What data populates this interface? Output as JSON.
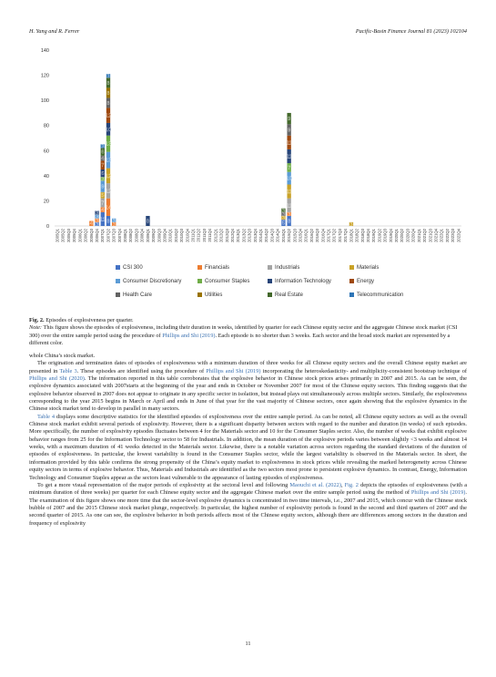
{
  "header": {
    "authors": "H. Yang and R. Ferrer",
    "journal": "Pacific-Basin Finance Journal 81 (2023) 102104"
  },
  "chart_data": {
    "type": "bar",
    "title": "",
    "xlabel": "",
    "ylabel": "",
    "ylim": [
      0,
      140
    ],
    "yticks": [
      0,
      20,
      40,
      60,
      80,
      100,
      120,
      140
    ],
    "grid": false,
    "legend_position": "bottom",
    "categories": [
      "2005Q1",
      "2005Q2",
      "2005Q3",
      "2005Q4",
      "2006Q1",
      "2006Q2",
      "2006Q3",
      "2006Q4",
      "2007Q1",
      "2007Q2",
      "2007Q3",
      "2007Q4",
      "2008Q1",
      "2008Q2",
      "2008Q3",
      "2008Q4",
      "2009Q1",
      "2009Q2",
      "2009Q3",
      "2009Q4",
      "2010Q1",
      "2010Q2",
      "2010Q3",
      "2010Q4",
      "2011Q1",
      "2011Q2",
      "2011Q3",
      "2011Q4",
      "2012Q1",
      "2012Q2",
      "2012Q3",
      "2012Q4",
      "2013Q1",
      "2013Q2",
      "2013Q3",
      "2013Q4",
      "2014Q1",
      "2014Q2",
      "2014Q3",
      "2014Q4",
      "2015Q1",
      "2015Q2",
      "2015Q3",
      "2015Q4",
      "2016Q1",
      "2016Q2",
      "2016Q3",
      "2016Q4",
      "2017Q1",
      "2017Q2",
      "2017Q3",
      "2017Q4",
      "2018Q1",
      "2018Q2",
      "2018Q3",
      "2018Q4",
      "2019Q1",
      "2019Q2",
      "2019Q3",
      "2019Q4",
      "2020Q1",
      "2020Q2",
      "2020Q3",
      "2020Q4",
      "2021Q1",
      "2021Q2",
      "2021Q3",
      "2021Q4",
      "2022Q1",
      "2022Q2",
      "2022Q3",
      "2022Q4"
    ],
    "series": [
      {
        "name": "CSI 300",
        "color": "#4472c4",
        "values": [
          0,
          0,
          0,
          0,
          0,
          0,
          0,
          3,
          11,
          8,
          0,
          0,
          0,
          0,
          0,
          0,
          0,
          0,
          0,
          0,
          0,
          0,
          0,
          0,
          0,
          0,
          0,
          0,
          0,
          0,
          0,
          0,
          0,
          0,
          0,
          0,
          0,
          0,
          0,
          0,
          5,
          8,
          0,
          0,
          0,
          0,
          0,
          0,
          0,
          0,
          0,
          0,
          0,
          0,
          0,
          0,
          0,
          0,
          0,
          0,
          0,
          0,
          0,
          0,
          0,
          0,
          0,
          0,
          0,
          0,
          0,
          0
        ]
      },
      {
        "name": "Financials",
        "color": "#ed7d31",
        "values": [
          0,
          0,
          0,
          0,
          0,
          0,
          4,
          3,
          4,
          14,
          3,
          0,
          0,
          0,
          0,
          0,
          0,
          0,
          0,
          0,
          0,
          0,
          0,
          0,
          0,
          0,
          0,
          0,
          0,
          0,
          0,
          0,
          0,
          0,
          0,
          0,
          0,
          0,
          0,
          0,
          0,
          3,
          0,
          0,
          0,
          0,
          0,
          0,
          0,
          0,
          0,
          0,
          0,
          0,
          0,
          0,
          0,
          0,
          0,
          0,
          0,
          0,
          0,
          0,
          0,
          0,
          0,
          0,
          0,
          0,
          0,
          0
        ]
      },
      {
        "name": "Industrials",
        "color": "#a5a5a5",
        "values": [
          0,
          0,
          0,
          0,
          0,
          0,
          0,
          0,
          7,
          12,
          0,
          0,
          0,
          0,
          0,
          0,
          0,
          0,
          0,
          0,
          0,
          0,
          0,
          0,
          0,
          0,
          0,
          0,
          0,
          0,
          0,
          0,
          0,
          0,
          0,
          0,
          0,
          0,
          0,
          0,
          0,
          11,
          0,
          0,
          0,
          0,
          0,
          0,
          0,
          0,
          0,
          0,
          0,
          0,
          0,
          0,
          0,
          0,
          0,
          0,
          0,
          0,
          0,
          0,
          0,
          0,
          0,
          0,
          0,
          0,
          0,
          0
        ]
      },
      {
        "name": "Materials",
        "color": "#c9a227",
        "values": [
          0,
          0,
          0,
          0,
          0,
          0,
          0,
          0,
          5,
          12,
          0,
          0,
          0,
          0,
          0,
          0,
          0,
          0,
          0,
          0,
          0,
          0,
          0,
          0,
          0,
          0,
          0,
          0,
          0,
          0,
          0,
          0,
          0,
          0,
          0,
          0,
          0,
          0,
          0,
          0,
          3,
          11,
          0,
          0,
          0,
          0,
          0,
          0,
          0,
          0,
          0,
          0,
          3,
          0,
          0,
          0,
          0,
          0,
          0,
          0,
          0,
          0,
          0,
          0,
          0,
          0,
          0,
          0,
          0,
          0,
          0,
          0
        ]
      },
      {
        "name": "Consumer Discretionary",
        "color": "#5b9bd5",
        "values": [
          0,
          0,
          0,
          0,
          0,
          0,
          0,
          3,
          9,
          13,
          3,
          0,
          0,
          0,
          0,
          0,
          0,
          0,
          0,
          0,
          0,
          0,
          0,
          0,
          0,
          0,
          0,
          0,
          0,
          0,
          0,
          0,
          0,
          0,
          0,
          0,
          0,
          0,
          0,
          0,
          0,
          10,
          0,
          0,
          0,
          0,
          0,
          0,
          0,
          0,
          0,
          0,
          0,
          0,
          0,
          0,
          0,
          0,
          0,
          0,
          0,
          0,
          0,
          0,
          0,
          0,
          0,
          0,
          0,
          0,
          0,
          0
        ]
      },
      {
        "name": "Consumer Staples",
        "color": "#70ad47",
        "values": [
          0,
          0,
          0,
          0,
          0,
          0,
          0,
          0,
          3,
          13,
          0,
          0,
          0,
          0,
          0,
          0,
          0,
          0,
          0,
          0,
          0,
          0,
          0,
          0,
          0,
          0,
          0,
          0,
          0,
          0,
          0,
          0,
          0,
          0,
          0,
          0,
          0,
          0,
          0,
          0,
          0,
          7,
          0,
          0,
          0,
          0,
          0,
          0,
          0,
          0,
          0,
          0,
          0,
          0,
          0,
          0,
          0,
          0,
          0,
          0,
          0,
          0,
          0,
          0,
          0,
          0,
          0,
          0,
          0,
          0,
          0,
          0
        ]
      },
      {
        "name": "Information Technology",
        "color": "#264478",
        "values": [
          0,
          0,
          0,
          0,
          0,
          0,
          0,
          3,
          6,
          10,
          0,
          0,
          0,
          0,
          0,
          0,
          8,
          0,
          0,
          0,
          0,
          0,
          0,
          0,
          0,
          0,
          0,
          0,
          0,
          0,
          0,
          0,
          0,
          0,
          0,
          0,
          0,
          0,
          0,
          0,
          0,
          11,
          0,
          0,
          0,
          0,
          0,
          0,
          0,
          0,
          0,
          0,
          0,
          0,
          0,
          0,
          0,
          0,
          0,
          0,
          0,
          0,
          0,
          0,
          0,
          0,
          0,
          0,
          0,
          0,
          0,
          0
        ]
      },
      {
        "name": "Energy",
        "color": "#9e480e",
        "values": [
          0,
          0,
          0,
          0,
          0,
          0,
          0,
          0,
          7,
          12,
          0,
          0,
          0,
          0,
          0,
          0,
          0,
          0,
          0,
          0,
          0,
          0,
          0,
          0,
          0,
          0,
          0,
          0,
          0,
          0,
          0,
          0,
          0,
          0,
          0,
          0,
          0,
          0,
          0,
          0,
          0,
          11,
          0,
          0,
          0,
          0,
          0,
          0,
          0,
          0,
          0,
          0,
          0,
          0,
          0,
          0,
          0,
          0,
          0,
          0,
          0,
          0,
          0,
          0,
          0,
          0,
          0,
          0,
          0,
          0,
          0,
          0
        ]
      },
      {
        "name": "Health Care",
        "color": "#636363",
        "values": [
          0,
          0,
          0,
          0,
          0,
          0,
          0,
          0,
          4,
          8,
          0,
          0,
          0,
          0,
          0,
          0,
          0,
          0,
          0,
          0,
          0,
          0,
          0,
          0,
          0,
          0,
          0,
          0,
          0,
          0,
          0,
          0,
          0,
          0,
          0,
          0,
          0,
          0,
          0,
          0,
          3,
          9,
          0,
          0,
          0,
          0,
          0,
          0,
          0,
          0,
          0,
          0,
          0,
          0,
          0,
          0,
          0,
          0,
          0,
          0,
          0,
          0,
          0,
          0,
          0,
          0,
          0,
          0,
          0,
          0,
          0,
          0
        ]
      },
      {
        "name": "Utilities",
        "color": "#997300",
        "values": [
          0,
          0,
          0,
          0,
          0,
          0,
          0,
          0,
          0,
          8,
          0,
          0,
          0,
          0,
          0,
          0,
          0,
          0,
          0,
          0,
          0,
          0,
          0,
          0,
          0,
          0,
          0,
          0,
          0,
          0,
          0,
          0,
          0,
          0,
          0,
          0,
          0,
          0,
          0,
          0,
          0,
          0,
          0,
          0,
          0,
          0,
          0,
          0,
          0,
          0,
          0,
          0,
          0,
          0,
          0,
          0,
          0,
          0,
          0,
          0,
          0,
          0,
          0,
          0,
          0,
          0,
          0,
          0,
          0,
          0,
          0,
          0
        ]
      },
      {
        "name": "Real Estate",
        "color": "#43682b",
        "values": [
          0,
          0,
          0,
          0,
          0,
          0,
          0,
          0,
          6,
          8,
          0,
          0,
          0,
          0,
          0,
          0,
          0,
          0,
          0,
          0,
          0,
          0,
          0,
          0,
          0,
          0,
          0,
          0,
          0,
          0,
          0,
          0,
          0,
          0,
          0,
          0,
          0,
          0,
          0,
          0,
          3,
          9,
          0,
          0,
          0,
          0,
          0,
          0,
          0,
          0,
          0,
          0,
          0,
          0,
          0,
          0,
          0,
          0,
          0,
          0,
          0,
          0,
          0,
          0,
          0,
          0,
          0,
          0,
          0,
          0,
          0,
          0
        ]
      },
      {
        "name": "Telecommunication",
        "color": "#2e75b6",
        "values": [
          0,
          0,
          0,
          0,
          0,
          0,
          0,
          0,
          3,
          3,
          0,
          0,
          0,
          0,
          0,
          0,
          0,
          0,
          0,
          0,
          0,
          0,
          0,
          0,
          0,
          0,
          0,
          0,
          0,
          0,
          0,
          0,
          0,
          0,
          0,
          0,
          0,
          0,
          0,
          0,
          0,
          0,
          0,
          0,
          0,
          0,
          0,
          0,
          0,
          0,
          0,
          0,
          0,
          0,
          0,
          0,
          0,
          0,
          0,
          0,
          0,
          0,
          0,
          0,
          0,
          0,
          0,
          0,
          0,
          0,
          0,
          0
        ]
      }
    ]
  },
  "figure": {
    "label": "Fig. 2.",
    "title": "Episodes of explosiveness per quarter.",
    "note_label": "Note:",
    "note_text_1": "This figure shows the episodes of explosiveness, including their duration in weeks, identified by quarter for each Chinese equity sector and the aggregate Chinese stock market (CSI 300) over the entire sample period using the procedure of ",
    "note_link": "Phillips and Shi (2019)",
    "note_text_2": ". Each episode is no shorter than 3 weeks. Each sector and the broad stock market are represented by a different color."
  },
  "body": {
    "p0": "whole China’s stock market.",
    "p1_a": "The origination and termination dates of episodes of explosiveness with a minimum duration of three weeks for all Chinese equity sectors and the overall Chinese equity market are presented in ",
    "p1_link1": "Table 3",
    "p1_b": ". These episodes are identified using the procedure of ",
    "p1_link2": "Phillips and Shi (2019)",
    "p1_c": " incorporating the heteroskedasticity- and multiplicity-consistent bootstrap technique of ",
    "p1_link3": "Phillips and Shi (2020)",
    "p1_d": ". The information reported in this table corroborates that the explosive behavior in Chinese stock prices arises primarily in 2007 and 2015. As can be seen, the explosive dynamics associated with 2007starts at the beginning of the year and ends in October or November 2007 for most of the Chinese equity sectors. This finding suggests that the explosive behavior observed in 2007 does not appear to originate in any specific sector in isolation, but instead plays out simultaneously across multiple sectors. Similarly, the explosiveness corresponding to the year 2015 begins in March or April and ends in June of that year for the vast majority of Chinese sectors, once again showing that the explosive dynamics in the Chinese stock market tend to develop in parallel in many sectors.",
    "p2_link": "Table 4",
    "p2_text": " displays some descriptive statistics for the identified episodes of explosiveness over the entire sample period. As can be noted, all Chinese equity sectors as well as the overall Chinese stock market exhibit several periods of explosivity. However, there is a significant disparity between sectors with regard to the number and duration (in weeks) of such episodes. More specifically, the number of explosivity episodes fluctuates between 4 for the Materials sector and 10 for the Consumer Staples sector. Also, the number of weeks that exhibit explosive behavior ranges from 25 for the Information Technology sector to 58 for Industrials. In addition, the mean duration of the explosive periods varies between slightly <3 weeks and almost 14 weeks, with a maximum duration of 41 weeks detected in the Materials sector. Likewise, there is a notable variation across sectors regarding the standard deviations of the duration of episodes of explosiveness. In particular, the lowest variability is found in the Consumer Staples sector, while the largest variability is observed in the Materials sector. In short, the information provided by this table confirms the strong propensity of the China’s equity market to explosiveness in stock prices while revealing the marked heterogeneity across Chinese equity sectors in terms of explosive behavior. Thus, Materials and Industrials are identified as the two sectors most prone to persistent explosive dynamics. In contrast, Energy, Information Technology and Consumer Staples appear as the sectors least vulnerable to the appearance of lasting episodes of explosiveness.",
    "p3_a": "To get a more visual representation of the major periods of explosivity at the sectoral level and following ",
    "p3_link1": "Maouchi et al. (2022)",
    "p3_sep": ", ",
    "p3_link2": "Fig. 2",
    "p3_b": " depicts the episodes of explosiveness (with a minimum duration of three weeks) per quarter for each Chinese equity sector and the aggregate Chinese market over the entire sample period using the method of ",
    "p3_link3": "Phillips and Shi (2019)",
    "p3_c": ". The examination of this figure shows one more time that the sector-level explosive dynamics is concentrated in two time intervals, i.e., 2007 and 2015, which concur with the Chinese stock bubble of 2007 and the 2015 Chinese stock market plunge, respectively. In particular, the highest number of explosivity periods is found in the second and third quarters of 2007 and the second quarter of 2015. As one can see, the explosive behavior in both periods affects most of the Chinese equity sectors, although there are differences among sectors in the duration and frequency of explosivity"
  },
  "page_number": "11"
}
